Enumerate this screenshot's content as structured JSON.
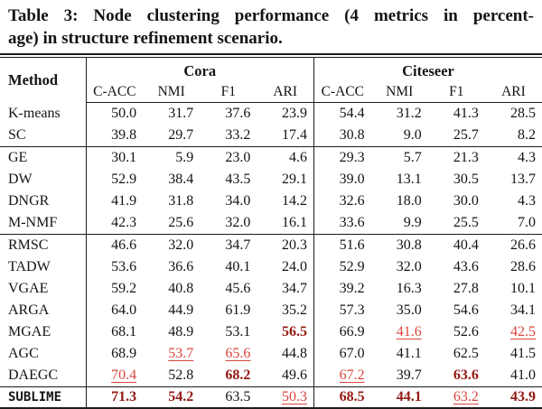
{
  "caption": {
    "line1": "Table 3: Node clustering performance (4 metrics in percent-",
    "line2": "age) in structure refinement scenario."
  },
  "colors": {
    "best_value": "#941914",
    "second_best_value": "#d9453c",
    "text": "#141414",
    "rule": "#1c1c1c"
  },
  "header": {
    "method_label": "Method",
    "groups": [
      "Cora",
      "Citeseer"
    ],
    "metrics": [
      "C-ACC",
      "NMI",
      "F1",
      "ARI"
    ]
  },
  "rows": [
    {
      "method": "K-means",
      "values": [
        "50.0",
        "31.7",
        "37.6",
        "23.9",
        "54.4",
        "31.2",
        "41.3",
        "28.5"
      ],
      "styles": [
        "",
        "",
        "",
        "",
        "",
        "",
        "",
        ""
      ]
    },
    {
      "method": "SC",
      "values": [
        "39.8",
        "29.7",
        "33.2",
        "17.4",
        "30.8",
        "9.0",
        "25.7",
        "8.2"
      ],
      "styles": [
        "",
        "",
        "",
        "",
        "",
        "",
        "",
        ""
      ],
      "rule_after": true
    },
    {
      "method": "GE",
      "values": [
        "30.1",
        "5.9",
        "23.0",
        "4.6",
        "29.3",
        "5.7",
        "21.3",
        "4.3"
      ],
      "styles": [
        "",
        "",
        "",
        "",
        "",
        "",
        "",
        ""
      ]
    },
    {
      "method": "DW",
      "values": [
        "52.9",
        "38.4",
        "43.5",
        "29.1",
        "39.0",
        "13.1",
        "30.5",
        "13.7"
      ],
      "styles": [
        "",
        "",
        "",
        "",
        "",
        "",
        "",
        ""
      ]
    },
    {
      "method": "DNGR",
      "values": [
        "41.9",
        "31.8",
        "34.0",
        "14.2",
        "32.6",
        "18.0",
        "30.0",
        "4.3"
      ],
      "styles": [
        "",
        "",
        "",
        "",
        "",
        "",
        "",
        ""
      ]
    },
    {
      "method": "M-NMF",
      "values": [
        "42.3",
        "25.6",
        "32.0",
        "16.1",
        "33.6",
        "9.9",
        "25.5",
        "7.0"
      ],
      "styles": [
        "",
        "",
        "",
        "",
        "",
        "",
        "",
        ""
      ],
      "rule_after": true
    },
    {
      "method": "RMSC",
      "values": [
        "46.6",
        "32.0",
        "34.7",
        "20.3",
        "51.6",
        "30.8",
        "40.4",
        "26.6"
      ],
      "styles": [
        "",
        "",
        "",
        "",
        "",
        "",
        "",
        ""
      ]
    },
    {
      "method": "TADW",
      "values": [
        "53.6",
        "36.6",
        "40.1",
        "24.0",
        "52.9",
        "32.0",
        "43.6",
        "28.6"
      ],
      "styles": [
        "",
        "",
        "",
        "",
        "",
        "",
        "",
        ""
      ]
    },
    {
      "method": "VGAE",
      "values": [
        "59.2",
        "40.8",
        "45.6",
        "34.7",
        "39.2",
        "16.3",
        "27.8",
        "10.1"
      ],
      "styles": [
        "",
        "",
        "",
        "",
        "",
        "",
        "",
        ""
      ]
    },
    {
      "method": "ARGA",
      "values": [
        "64.0",
        "44.9",
        "61.9",
        "35.2",
        "57.3",
        "35.0",
        "54.6",
        "34.1"
      ],
      "styles": [
        "",
        "",
        "",
        "",
        "",
        "",
        "",
        ""
      ]
    },
    {
      "method": "MGAE",
      "values": [
        "68.1",
        "48.9",
        "53.1",
        "56.5",
        "66.9",
        "41.6",
        "52.6",
        "42.5"
      ],
      "styles": [
        "",
        "",
        "",
        "best",
        "",
        "second",
        "",
        "second"
      ]
    },
    {
      "method": "AGC",
      "values": [
        "68.9",
        "53.7",
        "65.6",
        "44.8",
        "67.0",
        "41.1",
        "62.5",
        "41.5"
      ],
      "styles": [
        "",
        "second",
        "second",
        "",
        "",
        "",
        "",
        ""
      ]
    },
    {
      "method": "DAEGC",
      "values": [
        "70.4",
        "52.8",
        "68.2",
        "49.6",
        "67.2",
        "39.7",
        "63.6",
        "41.0"
      ],
      "styles": [
        "second",
        "",
        "best",
        "",
        "second",
        "",
        "best",
        ""
      ],
      "rule_after": true
    },
    {
      "method": "SUBLIME",
      "values": [
        "71.3",
        "54.2",
        "63.5",
        "50.3",
        "68.5",
        "44.1",
        "63.2",
        "43.9"
      ],
      "styles": [
        "best",
        "best",
        "",
        "second",
        "best",
        "best",
        "second",
        "best"
      ],
      "method_style": "mono"
    }
  ]
}
